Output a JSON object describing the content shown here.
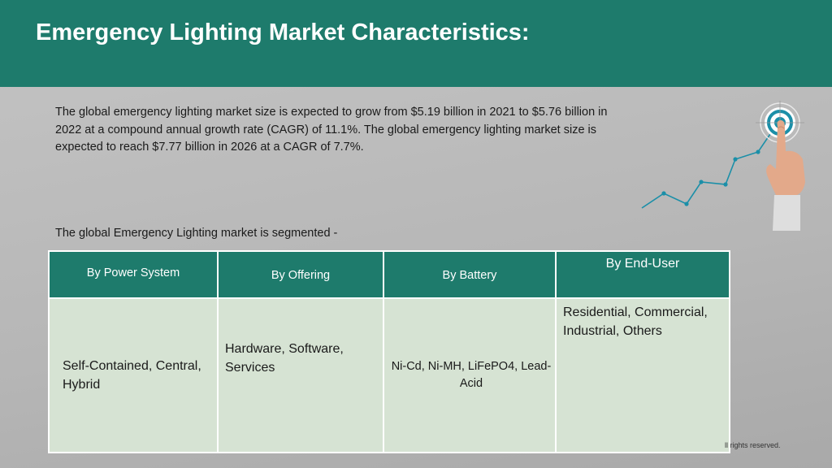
{
  "header": {
    "title": "Emergency Lighting Market Characteristics:"
  },
  "intro": "The global emergency lighting market size is expected to grow from $5.19 billion in 2021 to $5.76 billion in 2022 at a compound annual growth rate (CAGR) of 11.1%. The global emergency lighting market size is expected to reach $7.77 billion in 2026 at a CAGR of 7.7%.",
  "segment_label": "The global Emergency Lighting market is segmented -",
  "table": {
    "headers": [
      "By Power System",
      "By Offering",
      "By Battery",
      "By End-User"
    ],
    "cells": [
      "Self-Contained, Central, Hybrid",
      "Hardware, Software, Services",
      "Ni-Cd, Ni-MH, LiFePO4, Lead-Acid",
      "Residential, Commercial, Industrial, Others"
    ]
  },
  "footer": {
    "copyright": "ll rights reserved."
  },
  "colors": {
    "header_bg": "#1e7b6c",
    "cell_bg": "#d6e3d3",
    "accent": "#1b8fa8"
  },
  "icons": {
    "graphic": "target-growth-chart-icon"
  }
}
